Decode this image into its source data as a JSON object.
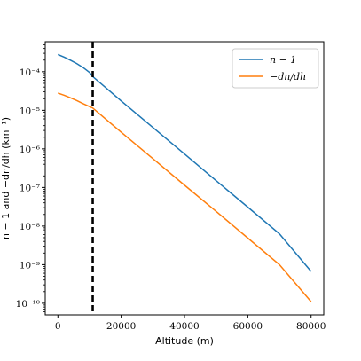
{
  "chart_data": {
    "type": "line",
    "xlabel": "Altitude (m)",
    "ylabel": "n − 1 and −dn/dh (km⁻¹)",
    "yscale": "log",
    "xlim": [
      -4000,
      84000
    ],
    "ylim": [
      5e-11,
      0.0006
    ],
    "grid": false,
    "legend_position": "top-right",
    "x_ticks": [
      0,
      20000,
      40000,
      60000,
      80000
    ],
    "x_tick_labels": [
      "0",
      "20000",
      "40000",
      "60000",
      "80000"
    ],
    "y_ticks": [
      1e-10,
      1e-09,
      1e-08,
      1e-07,
      1e-06,
      1e-05,
      0.0001
    ],
    "y_tick_labels": [
      "10⁻¹⁰",
      "10⁻⁹",
      "10⁻⁸",
      "10⁻⁷",
      "10⁻⁶",
      "10⁻⁵",
      "10⁻⁴"
    ],
    "vline": {
      "x": 11000,
      "style": "dashed",
      "color": "#000000"
    },
    "series": [
      {
        "name": "n − 1",
        "color": "#1f77b4",
        "x": [
          0,
          2000,
          4000,
          6000,
          8000,
          10000,
          11000,
          20000,
          30000,
          40000,
          50000,
          60000,
          70000,
          80000
        ],
        "y": [
          0.00028,
          0.000238,
          0.000198,
          0.000162,
          0.000128,
          9.6e-05,
          7.5e-05,
          1.75e-05,
          3.6e-06,
          7.4e-07,
          1.5e-07,
          3.1e-08,
          6.3e-09,
          6.7e-10
        ]
      },
      {
        "name": "−dn/dh",
        "color": "#ff7f0e",
        "x": [
          0,
          2000,
          4000,
          6000,
          8000,
          10000,
          11000,
          20000,
          30000,
          40000,
          50000,
          60000,
          70000,
          80000
        ],
        "y": [
          2.8e-05,
          2.45e-05,
          2.1e-05,
          1.78e-05,
          1.48e-05,
          1.25e-05,
          1.15e-05,
          2.7e-06,
          5.6e-07,
          1.15e-07,
          2.4e-08,
          4.9e-09,
          1e-09,
          1.1e-10
        ]
      }
    ]
  }
}
